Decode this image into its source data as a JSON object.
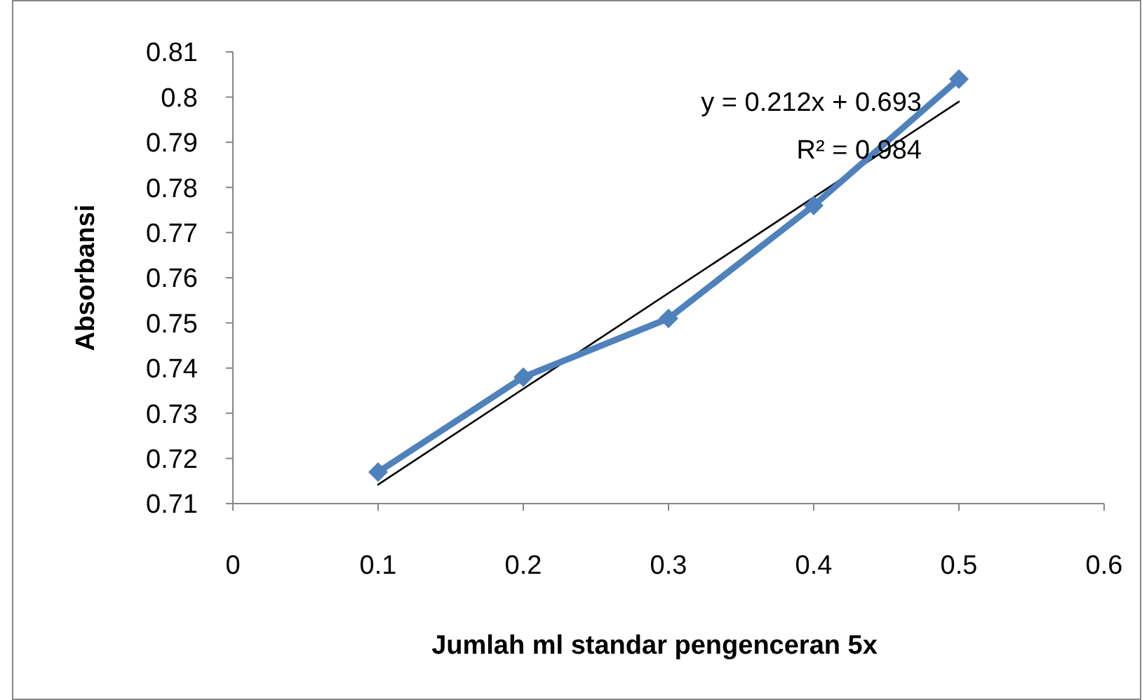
{
  "chart_data": {
    "type": "line",
    "xlabel": "Jumlah ml standar pengenceran 5x",
    "ylabel": "Absorbansi",
    "x": [
      0.1,
      0.2,
      0.3,
      0.4,
      0.5
    ],
    "series": [
      {
        "color": "#4f81bd",
        "values": [
          0.717,
          0.738,
          0.751,
          0.776,
          0.804
        ],
        "marker": "diamond",
        "line_style": "solid"
      },
      {
        "type": "line",
        "color": "#000000",
        "x": [
          0.1,
          0.5
        ],
        "values": [
          0.7142,
          0.799
        ],
        "marker": "none",
        "line_style": "solid"
      }
    ],
    "xlim": [
      0,
      0.6
    ],
    "xticks": [
      0,
      0.1,
      0.2,
      0.3,
      0.4,
      0.5,
      0.6
    ],
    "ylim": [
      0.71,
      0.81
    ],
    "yticks": [
      0.71,
      0.72,
      0.73,
      0.74,
      0.75,
      0.76,
      0.77,
      0.78,
      0.79,
      0.8,
      0.81
    ],
    "grid": false,
    "annotations": [
      "y = 0.212x + 0.693",
      "R² = 0.984"
    ]
  }
}
